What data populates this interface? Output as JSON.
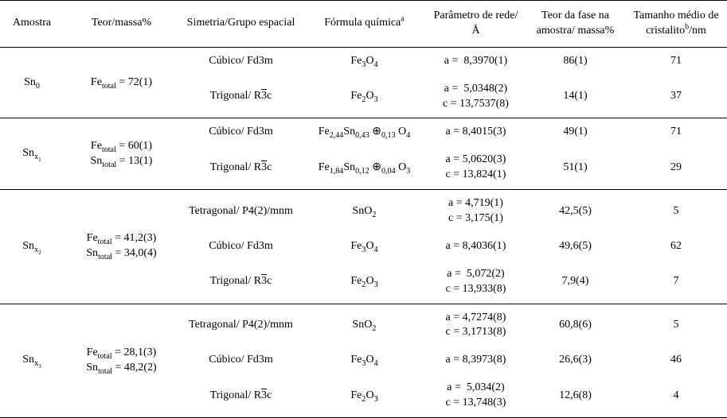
{
  "headers": {
    "c0": "Amostra",
    "c1": "Teor/massa%",
    "c2": "Simetria/Grupo espacial",
    "c3_html": "Fórmula química<span class=\"sup\">a</span>",
    "c4": "Parâmetro de rede/Å",
    "c5": "Teor da fase na amostra/ massa%",
    "c6_html": "Tamanho médio de cristalito<span class=\"sup\">b</span>/nm"
  },
  "groups": [
    {
      "sample_html": "Sn<span class=\"sub\">0</span>",
      "teor_html": "Fe<span class=\"sub\">total</span> = 72(1)",
      "rows": [
        {
          "symmetry_html": "Cúbico/ Fd3m",
          "formula_html": "Fe<span class=\"sub\">3</span>O<span class=\"sub\">4</span>",
          "param_html": "a =&nbsp; 8,3970(1)",
          "phase": "86(1)",
          "size": "71"
        },
        {
          "symmetry_html": "Trigonal/ R<span class=\"ov\">3</span>c",
          "formula_html": "Fe<span class=\"sub\">2</span>O<span class=\"sub\">3</span>",
          "param_html": "a =&nbsp; 5,0348(2)<br>c = 13,7537(8)",
          "phase": "14(1)",
          "size": "37"
        }
      ]
    },
    {
      "sample_html": "Sn<span class=\"sub\">x<span class=\"sub\">1</span></span>",
      "teor_html": "<span class=\"teor-line\">Fe<span class=\"sub\">total</span> = 60(1)</span><span class=\"teor-line\">Sn<span class=\"sub\">total</span> = 13(1)</span>",
      "rows": [
        {
          "symmetry_html": "Cúbico/ Fd3m",
          "formula_html": "Fe<span class=\"sub\">2,44</span>Sn<span class=\"sub\">0,43</span> ⊕<span class=\"sub\">0,13</span> O<span class=\"sub\">4</span>",
          "param_html": "a = 8,4015(3)",
          "phase": "49(1)",
          "size": "71"
        },
        {
          "symmetry_html": "Trigonal/ R<span class=\"ov\">3</span>c",
          "formula_html": "Fe<span class=\"sub\">1,84</span>Sn<span class=\"sub\">0,12</span> ⊕<span class=\"sub\">0,04</span> O<span class=\"sub\">3</span>",
          "param_html": "a = 5,0620(3)<br>c = 13,824(1)",
          "phase": "51(1)",
          "size": "29"
        }
      ]
    },
    {
      "sample_html": "Sn<span class=\"sub\">x<span class=\"sub\">2</span></span>",
      "teor_html": "<span class=\"teor-line\">Fe<span class=\"sub\">total</span> = 41,2(3)</span><span class=\"teor-line\">Sn<span class=\"sub\">total</span> = 34,0(4)</span>",
      "rows": [
        {
          "symmetry_html": "Tetragonal/ P4(2)/mnm",
          "formula_html": "SnO<span class=\"sub\">2</span>",
          "param_html": "a = 4,719(1)<br>c = 3,175(1)",
          "phase": "42,5(5)",
          "size": "5"
        },
        {
          "symmetry_html": "Cúbico/ Fd3m",
          "formula_html": "Fe<span class=\"sub\">3</span>O<span class=\"sub\">4</span>",
          "param_html": "a = 8,4036(1)",
          "phase": "49,6(5)",
          "size": "62"
        },
        {
          "symmetry_html": "Trigonal/ R<span class=\"ov\">3</span>c",
          "formula_html": "Fe<span class=\"sub\">2</span>O<span class=\"sub\">3</span>",
          "param_html": "a =&nbsp; 5,072(2)<br>c = 13,933(8)",
          "phase": "7,9(4)",
          "size": "7"
        }
      ]
    },
    {
      "sample_html": "Sn<span class=\"sub\">x<span class=\"sub\">3</span></span>",
      "teor_html": "<span class=\"teor-line\">Fe<span class=\"sub\">total</span> = 28,1(3)</span><span class=\"teor-line\">Sn<span class=\"sub\">total</span> = 48,2(2)</span>",
      "rows": [
        {
          "symmetry_html": "Tetragonal/ P4(2)/mnm",
          "formula_html": "SnO<span class=\"sub\">2</span>",
          "param_html": "a = 4,7274(8)<br>c = 3,1713(8)",
          "phase": "60,8(6)",
          "size": "5"
        },
        {
          "symmetry_html": "Cúbico/ Fd3m",
          "formula_html": "Fe<span class=\"sub\">3</span>O<span class=\"sub\">4</span>",
          "param_html": "a = 8,3973(8)",
          "phase": "26,6(3)",
          "size": "46"
        },
        {
          "symmetry_html": "Trigonal/ R<span class=\"ov\">3</span>c",
          "formula_html": "Fe<span class=\"sub\">2</span>O<span class=\"sub\">3</span>",
          "param_html": "a =&nbsp; 5,034(2)<br>c = 13,748(3)",
          "phase": "12,6(8)",
          "size": "4"
        }
      ]
    }
  ]
}
